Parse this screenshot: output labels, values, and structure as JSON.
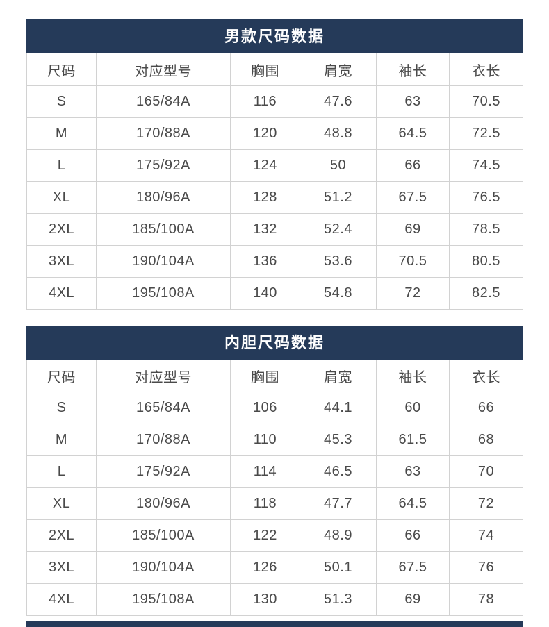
{
  "colors": {
    "header_bg": "#253a59",
    "border": "#d2d2d2",
    "cell_text": "#4a4a4a",
    "title_text": "#ffffff"
  },
  "chart_data": [
    {
      "type": "table",
      "title": "男款尺码数据",
      "columns": [
        "尺码",
        "对应型号",
        "胸围",
        "肩宽",
        "袖长",
        "衣长"
      ],
      "rows": [
        [
          "S",
          "165/84A",
          "116",
          "47.6",
          "63",
          "70.5"
        ],
        [
          "M",
          "170/88A",
          "120",
          "48.8",
          "64.5",
          "72.5"
        ],
        [
          "L",
          "175/92A",
          "124",
          "50",
          "66",
          "74.5"
        ],
        [
          "XL",
          "180/96A",
          "128",
          "51.2",
          "67.5",
          "76.5"
        ],
        [
          "2XL",
          "185/100A",
          "132",
          "52.4",
          "69",
          "78.5"
        ],
        [
          "3XL",
          "190/104A",
          "136",
          "53.6",
          "70.5",
          "80.5"
        ],
        [
          "4XL",
          "195/108A",
          "140",
          "54.8",
          "72",
          "82.5"
        ]
      ]
    },
    {
      "type": "table",
      "title": "内胆尺码数据",
      "columns": [
        "尺码",
        "对应型号",
        "胸围",
        "肩宽",
        "袖长",
        "衣长"
      ],
      "rows": [
        [
          "S",
          "165/84A",
          "106",
          "44.1",
          "60",
          "66"
        ],
        [
          "M",
          "170/88A",
          "110",
          "45.3",
          "61.5",
          "68"
        ],
        [
          "L",
          "175/92A",
          "114",
          "46.5",
          "63",
          "70"
        ],
        [
          "XL",
          "180/96A",
          "118",
          "47.7",
          "64.5",
          "72"
        ],
        [
          "2XL",
          "185/100A",
          "122",
          "48.9",
          "66",
          "74"
        ],
        [
          "3XL",
          "190/104A",
          "126",
          "50.1",
          "67.5",
          "76"
        ],
        [
          "4XL",
          "195/108A",
          "130",
          "51.3",
          "69",
          "78"
        ]
      ]
    }
  ]
}
